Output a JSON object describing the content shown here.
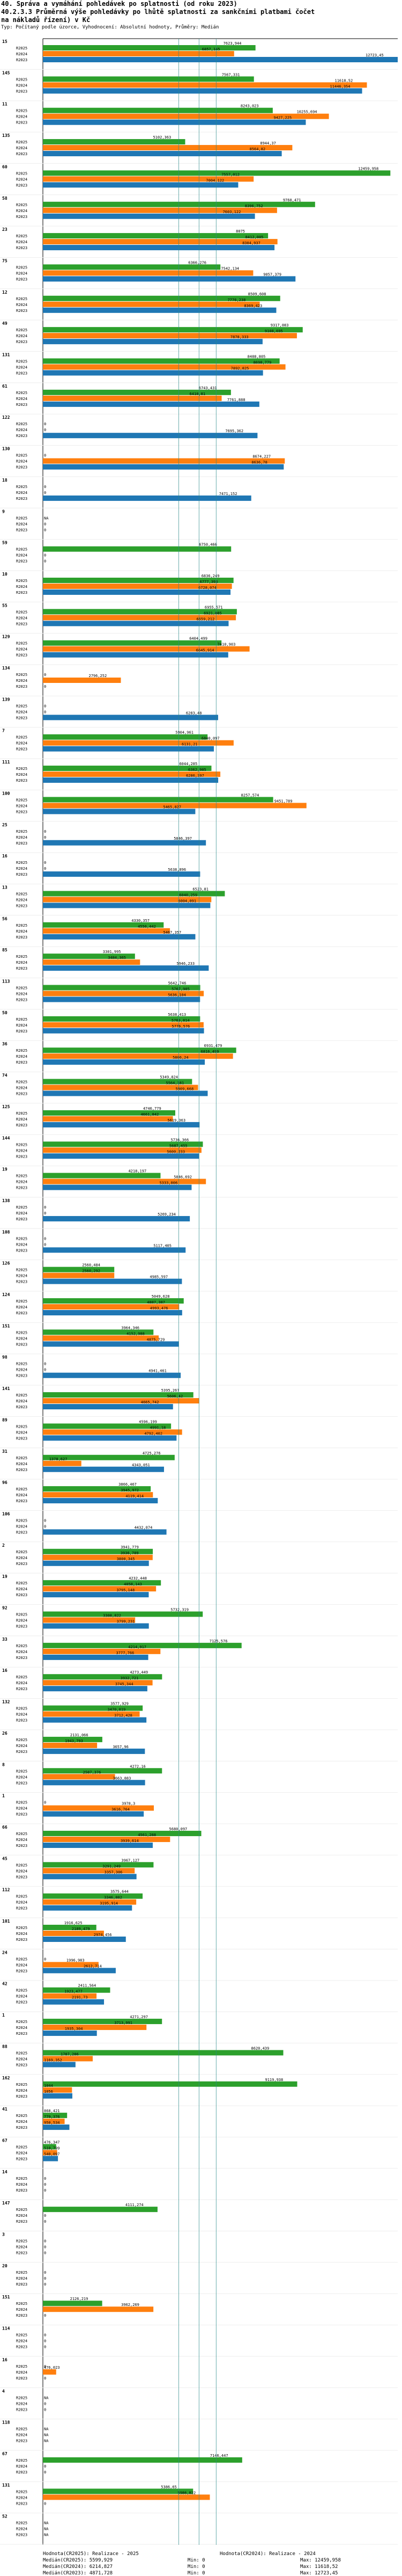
{
  "header": {
    "title_line1": "40. Správa a vymáhání pohledávek po splatnosti (od roku 2023)",
    "title_line2": "40.2.3.3 Průměrná výše pohledávky po lhůtě splatnosti za sankčními platbami čočet",
    "title_line3": "na nákladů řízení) v Kč",
    "subtitle": "Typ: Počítaný podle úzorce, Vyhodnocení: Absolutní hodnoty, Průměry: Medián"
  },
  "legend": {
    "row1_left": "Hodnota(CR2025): Realizace - 2025",
    "row1_right": "Hodnota(CR2024): Realizace - 2024",
    "row2_left": "Medián(CR2025): 5599,929",
    "row2_mid": "Min: 0",
    "row2_right": "Max: 12459,958",
    "row3_left": "Medián(CR2024): 6214,827",
    "row3_mid": "Min: 0",
    "row3_right": "Max: 11618,52",
    "row4_left": "Medián(CR2023): 4871,728",
    "row4_mid": "Min: 0",
    "row4_right": "Max: 12723,45"
  },
  "chart_data": {
    "type": "bar",
    "orientation": "horizontal",
    "xlim": [
      0,
      12723.45
    ],
    "series_names": [
      "R2025",
      "R2024",
      "R2023"
    ],
    "series_colors": [
      "#2ca02c",
      "#ff7f0e",
      "#1f77b4"
    ],
    "medians": {
      "R2025": 5599.929,
      "R2024": 6214.827,
      "R2023": 4871.728
    },
    "medians_color": "#2a8a8a",
    "groups": [
      {
        "id": "15",
        "values": [
          7623.944,
          6857.145,
          12723.45
        ],
        "labels": [
          "7623,944",
          "6857,145",
          "12723,45"
        ]
      },
      {
        "id": "145",
        "values": [
          7567.331,
          11618.52,
          11446.354
        ],
        "labels": [
          "7567,331",
          "11618,52",
          "11446,354"
        ]
      },
      {
        "id": "11",
        "values": [
          8243.023,
          10255.694,
          9427.225
        ],
        "labels": [
          "8243,023",
          "10255,694",
          "9427,225"
        ]
      },
      {
        "id": "135",
        "values": [
          5102.363,
          8944.37,
          8564.82
        ],
        "labels": [
          "5102,363",
          "8944,37",
          "8564,82"
        ]
      },
      {
        "id": "60",
        "values": [
          12459.958,
          7557.012,
          7004.122
        ],
        "labels": [
          "12459,958",
          "7557,012",
          "7004,122"
        ]
      },
      {
        "id": "58",
        "values": [
          9760.471,
          8396.752,
          7603.122
        ],
        "labels": [
          "9760,471",
          "8396,752",
          "7603,122"
        ]
      },
      {
        "id": "23",
        "values": [
          8075.0,
          8412.005,
          8304.937
        ],
        "labels": [
          "8075",
          "8412,005",
          "8304,937"
        ]
      },
      {
        "id": "75",
        "values": [
          6366.276,
          7542.134,
          9057.379
        ],
        "labels": [
          "6366,276",
          "7542,134",
          "9057,379"
        ]
      },
      {
        "id": "12",
        "values": [
          8509.608,
          7776.238,
          8369.423
        ],
        "labels": [
          "8509,608",
          "7776,238",
          "8369,423"
        ]
      },
      {
        "id": "49",
        "values": [
          9317.083,
          9108.695,
          7878.333
        ],
        "labels": [
          "9317,083",
          "9108,695",
          "7878,333"
        ]
      },
      {
        "id": "131",
        "values": [
          8488.805,
          8698.779,
          7892.825
        ],
        "labels": [
          "8488,805",
          "8698,779",
          "7892,825"
        ]
      },
      {
        "id": "61",
        "values": [
          6743.431,
          6410.81,
          7761.888
        ],
        "labels": [
          "6743,431",
          "6410,81",
          "7761,888"
        ]
      },
      {
        "id": "122",
        "values": [
          0,
          0,
          7695.362
        ],
        "labels": [
          "0",
          "0",
          "7695,362"
        ]
      },
      {
        "id": "130",
        "values": [
          0,
          8674.227,
          8636.78
        ],
        "labels": [
          "0",
          "8674,227",
          "8636,78"
        ]
      },
      {
        "id": "18",
        "values": [
          0,
          0,
          7471.152
        ],
        "labels": [
          "0",
          "0",
          "7471,152"
        ]
      },
      {
        "id": "9",
        "values": [
          0,
          0,
          0
        ],
        "labels": [
          "NA",
          "0",
          "0"
        ]
      },
      {
        "id": "59",
        "values": [
          6750.466,
          0,
          0
        ],
        "labels": [
          "6750,466",
          "0",
          "0"
        ]
      },
      {
        "id": "10",
        "values": [
          6836.249,
          6777.393,
          6728.074
        ],
        "labels": [
          "6836,249",
          "6777,393",
          "6728,074"
        ]
      },
      {
        "id": "55",
        "values": [
          6955.571,
          6921.085,
          6659.212
        ],
        "labels": [
          "6955,571",
          "6921,085",
          "6659,212"
        ]
      },
      {
        "id": "129",
        "values": [
          6404.499,
          7410.903,
          6645.914
        ],
        "labels": [
          "6404,499",
          "7410,903",
          "6645,914"
        ]
      },
      {
        "id": "134",
        "values": [
          0,
          2796.252,
          0
        ],
        "labels": [
          "0",
          "2796,252",
          "0"
        ]
      },
      {
        "id": "139",
        "values": [
          0,
          0,
          6283.48
        ],
        "labels": [
          "0",
          "0",
          "6283,48"
        ]
      },
      {
        "id": "7",
        "values": [
          5904.961,
          6840.097,
          6131.21
        ],
        "labels": [
          "5904,961",
          "6840,097",
          "6131,21"
        ]
      },
      {
        "id": "111",
        "values": [
          6044.285,
          6362.905,
          6286.397
        ],
        "labels": [
          "6044,285",
          "6362,905",
          "6286,397"
        ]
      },
      {
        "id": "100",
        "values": [
          8257.574,
          9451.789,
          5465.827
        ],
        "labels": [
          "8257,574",
          "9451,789",
          "5465,827"
        ]
      },
      {
        "id": "25",
        "values": [
          0,
          0,
          5846.397
        ],
        "labels": [
          "0",
          "0",
          "5846,397"
        ]
      },
      {
        "id": "16",
        "values": [
          0,
          0,
          5638.896
        ],
        "labels": [
          "0",
          "0",
          "5638,896"
        ]
      },
      {
        "id": "13",
        "values": [
          6523.81,
          6040.259,
          6004.091
        ],
        "labels": [
          "6523,81",
          "6040,259",
          "6004,091"
        ]
      },
      {
        "id": "56",
        "values": [
          4330.357,
          4556.442,
          5467.357
        ],
        "labels": [
          "4330,357",
          "4556,442",
          "5467,357"
        ]
      },
      {
        "id": "85",
        "values": [
          3301.995,
          3484.365,
          5946.233
        ],
        "labels": [
          "3301,995",
          "3484,365",
          "5946,233"
        ]
      },
      {
        "id": "113",
        "values": [
          5642.746,
          5767.905,
          5636.104
        ],
        "labels": [
          "5642,746",
          "5767,905",
          "5636,104"
        ]
      },
      {
        "id": "50",
        "values": [
          5638.413,
          5763.814,
          5776.576
        ],
        "labels": [
          "5638,413",
          "5763,814",
          "5776,576"
        ]
      },
      {
        "id": "36",
        "values": [
          6931.479,
          6816.499,
          5806.24
        ],
        "labels": [
          "6931,479",
          "6816,499",
          "5806,24"
        ]
      },
      {
        "id": "74",
        "values": [
          5349.824,
          5564.181,
          5909.668
        ],
        "labels": [
          "5349,824",
          "5564,181",
          "5909,668"
        ]
      },
      {
        "id": "125",
        "values": [
          4746.779,
          4661.842,
          5619.363
        ],
        "labels": [
          "4746,779",
          "4661,842",
          "5619,363"
        ]
      },
      {
        "id": "144",
        "values": [
          5736.366,
          5687.455,
          5600.233
        ],
        "labels": [
          "5736,366",
          "5687,455",
          "5600,233"
        ]
      },
      {
        "id": "19",
        "values": [
          4218.197,
          5846.692,
          5333.006
        ],
        "labels": [
          "4218,197",
          "5846,692",
          "5333,006"
        ]
      },
      {
        "id": "138",
        "values": [
          0,
          0,
          5269.234
        ],
        "labels": [
          "0",
          "0",
          "5269,234"
        ]
      },
      {
        "id": "108",
        "values": [
          0,
          0,
          5117.405
        ],
        "labels": [
          "0",
          "0",
          "5117,405"
        ]
      },
      {
        "id": "126",
        "values": [
          2560.484,
          2560.292,
          4985.597
        ],
        "labels": [
          "2560,484",
          "2560,292",
          "4985,597"
        ]
      },
      {
        "id": "124",
        "values": [
          5049.628,
          4887.387,
          4993.476
        ],
        "labels": [
          "5049,628",
          "4887,387",
          "4993,476"
        ]
      },
      {
        "id": "151",
        "values": [
          3964.346,
          4152.988,
          4875.729
        ],
        "labels": [
          "3964,346",
          "4152,988",
          "4875,729"
        ]
      },
      {
        "id": "98",
        "values": [
          0,
          0,
          4941.461
        ],
        "labels": [
          "0",
          "0",
          "4941,461"
        ]
      },
      {
        "id": "141",
        "values": [
          5395.267,
          5606.42,
          4665.742
        ],
        "labels": [
          "5395,267",
          "5606,42",
          "4665,742"
        ]
      },
      {
        "id": "89",
        "values": [
          4596.199,
          4991.18,
          4792.402
        ],
        "labels": [
          "4596,199",
          "4991,18",
          "4792,402"
        ]
      },
      {
        "id": "31",
        "values": [
          4725.276,
          1378.627,
          4343.051
        ],
        "labels": [
          "4725,276",
          "1378,627",
          "4343,051"
        ]
      },
      {
        "id": "96",
        "values": [
          3866.467,
          3945.972,
          4119.414
        ],
        "labels": [
          "3866,467",
          "3945,972",
          "4119,414"
        ]
      },
      {
        "id": "106",
        "values": [
          0,
          0,
          4432.074
        ],
        "labels": [
          "0",
          "0",
          "4432,074"
        ]
      },
      {
        "id": "2",
        "values": [
          3941.779,
          3936.789,
          3800.345
        ],
        "labels": [
          "3941,779",
          "3936,789",
          "3800,345"
        ]
      },
      {
        "id": "18b",
        "display": "19",
        "values": [
          4232.448,
          4058.143,
          3795.148
        ],
        "labels": [
          "4232,448",
          "4058,143",
          "3795,148"
        ]
      },
      {
        "id": "92",
        "values": [
          5732.319,
          3308.822,
          3799.231
        ],
        "labels": [
          "5732,319",
          "3308,822",
          "3799,231"
        ]
      },
      {
        "id": "33",
        "values": [
          7125.576,
          4214.917,
          3777.766
        ],
        "labels": [
          "7125,576",
          "4214,917",
          "3777,766"
        ]
      },
      {
        "id": "16b",
        "display": "16",
        "values": [
          4273.449,
          3932.721,
          3745.344
        ],
        "labels": [
          "4273,449",
          "3932,721",
          "3745,344"
        ]
      },
      {
        "id": "132",
        "values": [
          3577.929,
          3470.019,
          3712.428
        ],
        "labels": [
          "3577,929",
          "3470,019",
          "3712,428"
        ]
      },
      {
        "id": "26",
        "values": [
          2131.066,
          1943.793,
          3657.96
        ],
        "labels": [
          "2131,066",
          "1943,793",
          "3657,96"
        ]
      },
      {
        "id": "8",
        "values": [
          4272.16,
          2587.376,
          3663.883
        ],
        "labels": [
          "4272,16",
          "2587,376",
          "3663,883"
        ]
      },
      {
        "id": "1",
        "values": [
          0,
          3978.3,
          3616.764
        ],
        "labels": [
          "0",
          "3978,3",
          "3616,764"
        ]
      },
      {
        "id": "66",
        "values": [
          5680.097,
          4561.288,
          3939.614
        ],
        "labels": [
          "5680,097",
          "4561,288",
          "3939,614"
        ]
      },
      {
        "id": "45",
        "values": [
          3967.127,
          3291.249,
          3357.306
        ],
        "labels": [
          "3967,127",
          "3291,249",
          "3357,306"
        ]
      },
      {
        "id": "112",
        "values": [
          3575.644,
          3346.802,
          3195.914
        ],
        "labels": [
          "3575,644",
          "3346,802",
          "3195,914"
        ]
      },
      {
        "id": "101",
        "values": [
          1916.625,
          2189.479,
          2974.456
        ],
        "labels": [
          "1916,625",
          "2189,479",
          "2974,456"
        ]
      },
      {
        "id": "24",
        "values": [
          0,
          1996.983,
          2612.714
        ],
        "labels": [
          "0",
          "1996,983",
          "2612,714"
        ]
      },
      {
        "id": "42",
        "values": [
          2411.564,
          1923.477,
          2191.73
        ],
        "labels": [
          "2411,564",
          "1923,477",
          "2191,73"
        ]
      },
      {
        "id": "1b",
        "display": "1",
        "values": [
          4271.297,
          3713.991,
          1935.304
        ],
        "labels": [
          "4271,297",
          "3713,991",
          "1935,304"
        ]
      },
      {
        "id": "88",
        "values": [
          8620.439,
          1787.286,
          1169.352
        ],
        "labels": [
          "8620,439",
          "1787,286",
          "1169,352"
        ]
      },
      {
        "id": "162",
        "values": [
          9119.938,
          1044.0,
          1056.0
        ],
        "labels": [
          "9119,938",
          "1044",
          "1056"
        ]
      },
      {
        "id": "41",
        "values": [
          868.421,
          779.376,
          950.534
        ],
        "labels": [
          "868,421",
          "779,376",
          "950,534"
        ]
      },
      {
        "id": "67",
        "values": [
          476.347,
          510.799,
          540.097
        ],
        "labels": [
          "476,347",
          "510,799",
          "540,097"
        ]
      },
      {
        "id": "14",
        "values": [
          0,
          0,
          0
        ],
        "labels": [
          "0",
          "0",
          "0"
        ]
      },
      {
        "id": "147",
        "values": [
          4111.274,
          0,
          0
        ],
        "labels": [
          "4111,274",
          "0",
          "0"
        ]
      },
      {
        "id": "3",
        "values": [
          0,
          0,
          0
        ],
        "labels": [
          "0",
          "0",
          "0"
        ]
      },
      {
        "id": "20",
        "values": [
          0,
          0,
          0
        ],
        "labels": [
          "0",
          "0",
          "0"
        ]
      },
      {
        "id": "151b",
        "display": "151",
        "values": [
          2126.219,
          3962.269,
          0
        ],
        "labels": [
          "2126,219",
          "3962,269",
          "0"
        ]
      },
      {
        "id": "114",
        "values": [
          0,
          0,
          0
        ],
        "labels": [
          "0",
          "0",
          "0"
        ]
      },
      {
        "id": "16c",
        "display": "16",
        "values": [
          0,
          476.023,
          0
        ],
        "labels": [
          "0",
          "476,023",
          "0"
        ]
      },
      {
        "id": "4",
        "values": [
          0,
          0,
          0
        ],
        "labels": [
          "NA",
          "0",
          "0"
        ]
      },
      {
        "id": "118",
        "values": [
          0,
          0,
          0
        ],
        "labels": [
          "NA",
          "NA",
          "NA"
        ]
      },
      {
        "id": "67b",
        "display": "67",
        "values": [
          7146.447,
          0,
          0
        ],
        "labels": [
          "7146,447",
          "0",
          "0"
        ]
      },
      {
        "id": "131b",
        "display": "131",
        "values": [
          5386.65,
          5986.822,
          0
        ],
        "labels": [
          "5386,65",
          "5986,822",
          "0"
        ]
      },
      {
        "id": "52",
        "values": [
          0,
          0,
          0
        ],
        "labels": [
          "NA",
          "NA",
          "NA"
        ]
      }
    ]
  }
}
